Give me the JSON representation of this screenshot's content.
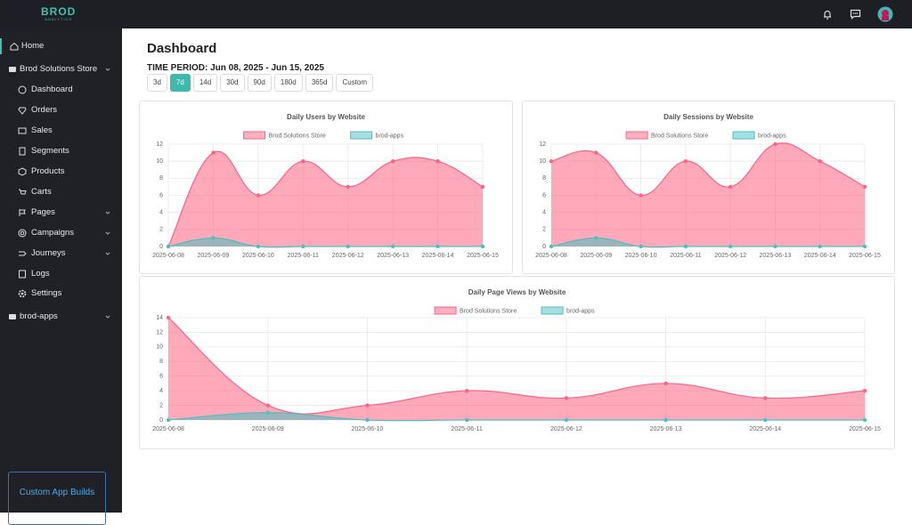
{
  "logo": {
    "name": "BROD",
    "tagline": "ANALYTICS"
  },
  "sidebar": {
    "home": "Home",
    "store": "Brod Solutions Store",
    "items": [
      "Dashboard",
      "Orders",
      "Sales",
      "Segments",
      "Products",
      "Carts",
      "Pages",
      "Campaigns",
      "Journeys",
      "Logs",
      "Settings"
    ],
    "apps": "brod-apps",
    "promo": "Custom App Builds"
  },
  "header": {
    "title": "Dashboard",
    "time_period": "TIME PERIOD: Jun 08, 2025 - Jun 15, 2025",
    "periods": [
      "3d",
      "7d",
      "14d",
      "30d",
      "90d",
      "180d",
      "365d",
      "Custom"
    ]
  },
  "chart_data": [
    {
      "type": "area",
      "title": "Daily Users by Website",
      "categories": [
        "2025-06-08",
        "2025-06-09",
        "2025-06-10",
        "2025-06-11",
        "2025-06-12",
        "2025-06-13",
        "2025-06-14",
        "2025-06-15"
      ],
      "series": [
        {
          "name": "Brod Solutions Store",
          "color": "#ff6384",
          "values": [
            0,
            11,
            6,
            10,
            7,
            10,
            10,
            7
          ]
        },
        {
          "name": "brod-apps",
          "color": "#4bc0c0",
          "values": [
            0,
            1,
            0,
            0,
            0,
            0,
            0,
            0
          ]
        }
      ],
      "ylim": [
        0,
        12
      ],
      "yticks": [
        0,
        2,
        4,
        6,
        8,
        10,
        12
      ],
      "grid": true
    },
    {
      "type": "area",
      "title": "Daily Sessions by Website",
      "categories": [
        "2025-06-08",
        "2025-06-09",
        "2025-06-10",
        "2025-06-11",
        "2025-06-12",
        "2025-06-13",
        "2025-06-14",
        "2025-06-15"
      ],
      "series": [
        {
          "name": "Brod Solutions Store",
          "color": "#ff6384",
          "values": [
            10,
            11,
            6,
            10,
            7,
            12,
            10,
            7
          ]
        },
        {
          "name": "brod-apps",
          "color": "#4bc0c0",
          "values": [
            0,
            1,
            0,
            0,
            0,
            0,
            0,
            0
          ]
        }
      ],
      "ylim": [
        0,
        12
      ],
      "yticks": [
        0,
        2,
        4,
        6,
        8,
        10,
        12
      ],
      "grid": true
    },
    {
      "type": "area",
      "title": "Daily Page Views by Website",
      "categories": [
        "2025-06-08",
        "2025-06-09",
        "2025-06-10",
        "2025-06-11",
        "2025-06-12",
        "2025-06-13",
        "2025-06-14",
        "2025-06-15"
      ],
      "series": [
        {
          "name": "Brod Solutions Store",
          "color": "#ff6384",
          "values": [
            14,
            2,
            2,
            4,
            3,
            5,
            3,
            4
          ]
        },
        {
          "name": "brod-apps",
          "color": "#4bc0c0",
          "values": [
            0,
            1,
            0,
            0,
            0,
            0,
            0,
            0
          ]
        }
      ],
      "ylim": [
        0,
        14
      ],
      "yticks": [
        0,
        2,
        4,
        6,
        8,
        10,
        12,
        14
      ],
      "grid": true
    }
  ]
}
